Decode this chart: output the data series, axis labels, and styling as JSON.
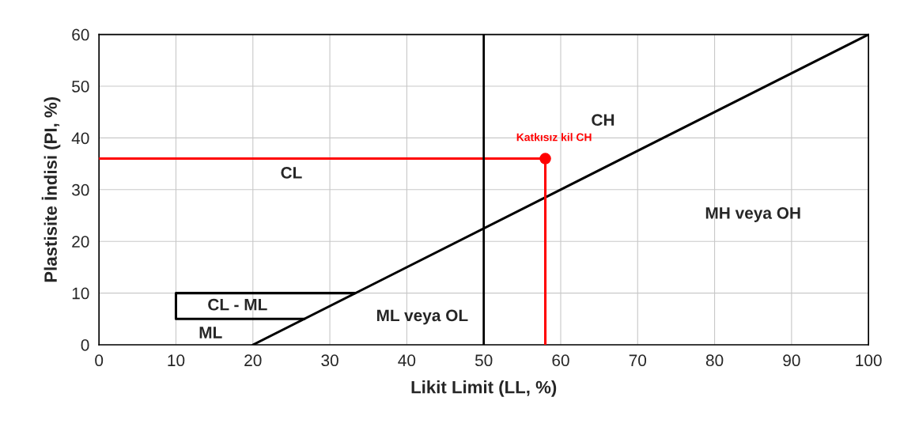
{
  "chart_data": {
    "type": "line",
    "xlabel": "Likit Limit (LL, %)",
    "ylabel": "Plastisite İndisi (PI, %)",
    "xlim": [
      0,
      100
    ],
    "ylim": [
      0,
      60
    ],
    "xticks": [
      0,
      10,
      20,
      30,
      40,
      50,
      60,
      70,
      80,
      90,
      100
    ],
    "yticks": [
      0,
      10,
      20,
      30,
      40,
      50,
      60
    ],
    "grid": true,
    "series": [
      {
        "color": "#000000",
        "x": [
          20,
          100
        ],
        "values": [
          0,
          60
        ]
      },
      {
        "color": "#000000",
        "x": [
          33.3,
          10,
          10,
          26.7
        ],
        "values": [
          10,
          10,
          5,
          5
        ]
      },
      {
        "color": "#ff0000",
        "x": [
          0,
          58,
          58
        ],
        "values": [
          36,
          36,
          0
        ]
      },
      {
        "type": "scatter",
        "color": "#ff0000",
        "x": [
          58
        ],
        "values": [
          36
        ],
        "marker": "circle"
      }
    ],
    "ref_lines": [
      {
        "axis": "x",
        "value": 50,
        "color": "#000000"
      }
    ],
    "annotations": [
      "CH",
      "CL",
      "MH veya OH",
      "ML veya OL",
      "CL - ML",
      "ML",
      {
        "text": "Katkısız kil CH",
        "x": 58,
        "y": 36
      }
    ]
  }
}
